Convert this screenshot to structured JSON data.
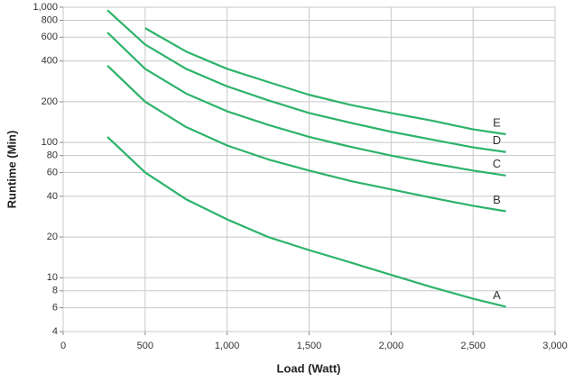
{
  "chart_data": {
    "type": "line",
    "x_label": "Load (Watt)",
    "y_label": "Runtime (Min)",
    "x": [
      270,
      500,
      750,
      1000,
      1250,
      1500,
      1750,
      2000,
      2250,
      2500,
      2700
    ],
    "series": [
      {
        "name": "A",
        "color": "#2db36a",
        "values": [
          110,
          60,
          38,
          27,
          20,
          16,
          13,
          10.5,
          8.5,
          7,
          6.1
        ]
      },
      {
        "name": "B",
        "color": "#2db36a",
        "values": [
          370,
          200,
          130,
          95,
          75,
          62,
          52,
          45,
          39,
          34,
          31
        ]
      },
      {
        "name": "C",
        "color": "#2db36a",
        "values": [
          650,
          350,
          230,
          170,
          135,
          110,
          93,
          80,
          70,
          62,
          57
        ]
      },
      {
        "name": "D",
        "color": "#2db36a",
        "values": [
          950,
          530,
          350,
          260,
          205,
          165,
          140,
          120,
          105,
          92,
          85
        ]
      },
      {
        "name": "E",
        "color": "#2db36a",
        "values": [
          null,
          700,
          470,
          350,
          280,
          225,
          190,
          165,
          145,
          125,
          115
        ]
      }
    ],
    "xlim": [
      0,
      3000
    ],
    "xticks": [
      0,
      500,
      {
        "value": 1000,
        "label": "1,000"
      },
      {
        "value": 1500,
        "label": "1,500"
      },
      {
        "value": 2000,
        "label": "2,000"
      },
      {
        "value": 2500,
        "label": "2,500"
      },
      {
        "value": 3000,
        "label": "3,000"
      }
    ],
    "ylim": [
      4,
      1000
    ],
    "log_y": true,
    "yticks": [
      4,
      6,
      8,
      10,
      20,
      40,
      60,
      80,
      100,
      200,
      400,
      600,
      800,
      {
        "value": 1000,
        "label": "1,000"
      }
    ],
    "grid": true
  }
}
